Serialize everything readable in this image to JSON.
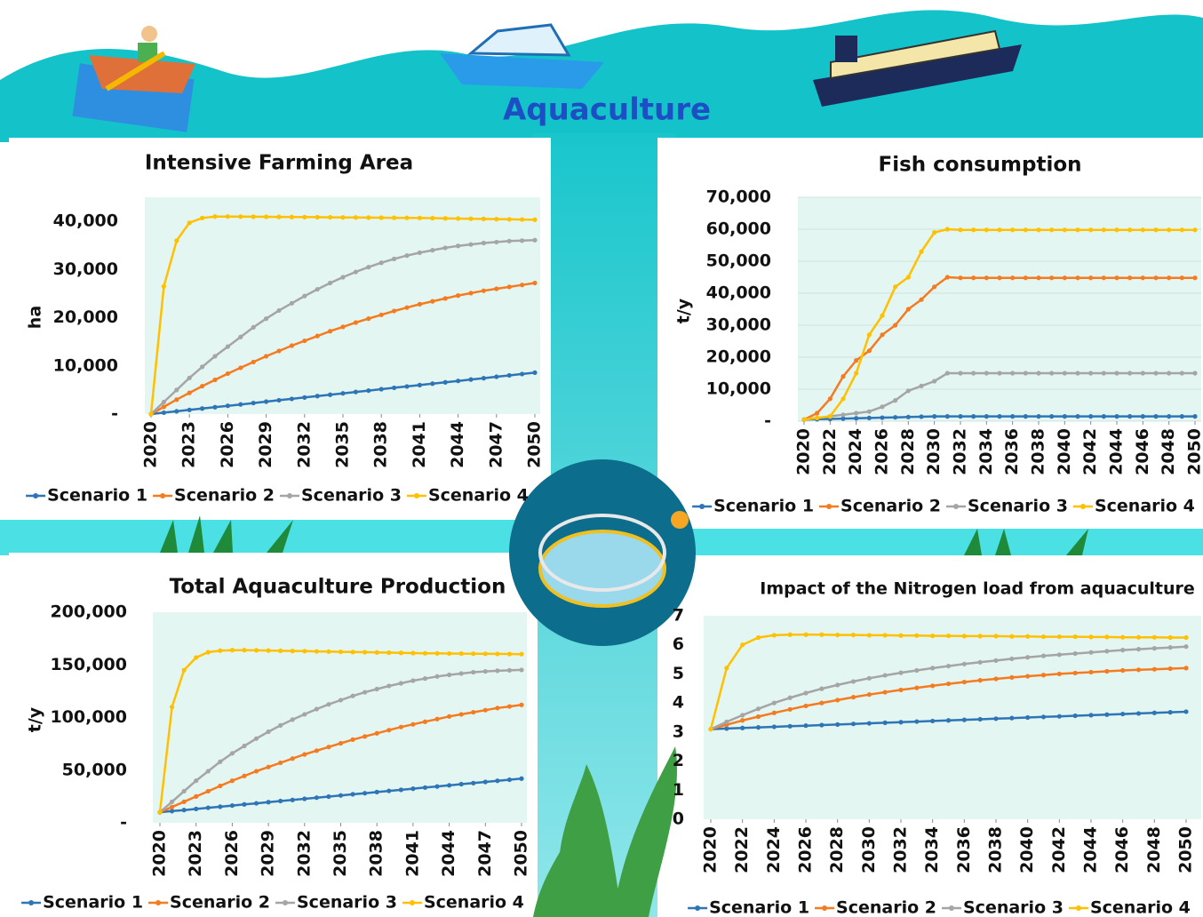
{
  "page_title": "Aquaculture",
  "chart_data": [
    {
      "type": "line",
      "title": "Intensive Farming Area",
      "y_label": "ha",
      "legend": "bottom",
      "grid": false,
      "x": [
        2020,
        2021,
        2022,
        2023,
        2024,
        2025,
        2026,
        2027,
        2028,
        2029,
        2030,
        2031,
        2032,
        2033,
        2034,
        2035,
        2036,
        2037,
        2038,
        2039,
        2040,
        2041,
        2042,
        2043,
        2044,
        2045,
        2046,
        2047,
        2048,
        2049,
        2050
      ],
      "xlim": [
        2020,
        2050
      ],
      "xticks": [
        2020,
        2023,
        2026,
        2029,
        2032,
        2035,
        2038,
        2041,
        2044,
        2047,
        2050
      ],
      "ylim": [
        0,
        45000
      ],
      "yticks": [
        {
          "value": 0,
          "label": "-"
        },
        {
          "value": 10000,
          "label": "10,000"
        },
        {
          "value": 20000,
          "label": "20,000"
        },
        {
          "value": 30000,
          "label": "30,000"
        },
        {
          "value": 40000,
          "label": "40,000"
        }
      ],
      "series": [
        {
          "name": "Scenario 1",
          "color": "#2e75b6",
          "values": [
            0,
            290,
            570,
            860,
            1150,
            1430,
            1720,
            2000,
            2290,
            2580,
            2870,
            3150,
            3440,
            3730,
            4010,
            4300,
            4590,
            4870,
            5160,
            5450,
            5730,
            6020,
            6310,
            6590,
            6880,
            7170,
            7450,
            7740,
            8030,
            8310,
            8600
          ]
        },
        {
          "name": "Scenario 2",
          "color": "#f47b20",
          "values": [
            0,
            1500,
            3000,
            4400,
            5800,
            7100,
            8400,
            9600,
            10800,
            12000,
            13100,
            14200,
            15200,
            16200,
            17200,
            18100,
            19000,
            19800,
            20600,
            21400,
            22100,
            22800,
            23400,
            24000,
            24600,
            25100,
            25600,
            26000,
            26400,
            26800,
            27200
          ]
        },
        {
          "name": "Scenario 3",
          "color": "#a5a5a5",
          "values": [
            0,
            2500,
            5000,
            7500,
            9800,
            12000,
            14000,
            16000,
            18000,
            19800,
            21500,
            23000,
            24500,
            25900,
            27200,
            28400,
            29500,
            30500,
            31400,
            32200,
            32900,
            33500,
            34000,
            34500,
            34900,
            35200,
            35500,
            35700,
            35900,
            36000,
            36100
          ]
        },
        {
          "name": "Scenario 4",
          "color": "#ffc000",
          "values": [
            0,
            26500,
            36000,
            39700,
            40700,
            41000,
            41000,
            40980,
            40960,
            40940,
            40920,
            40900,
            40880,
            40860,
            40840,
            40820,
            40800,
            40780,
            40760,
            40740,
            40720,
            40700,
            40660,
            40620,
            40580,
            40540,
            40500,
            40460,
            40420,
            40380,
            40340
          ]
        }
      ]
    },
    {
      "type": "line",
      "title": "Fish consumption",
      "y_label": "t/y",
      "legend": "bottom",
      "grid": true,
      "x": [
        2020,
        2021,
        2022,
        2023,
        2024,
        2025,
        2026,
        2027,
        2028,
        2029,
        2030,
        2031,
        2032,
        2033,
        2034,
        2035,
        2036,
        2037,
        2038,
        2039,
        2040,
        2041,
        2042,
        2043,
        2044,
        2045,
        2046,
        2047,
        2048,
        2049,
        2050
      ],
      "xlim": [
        2020,
        2050
      ],
      "xticks": [
        2020,
        2022,
        2024,
        2026,
        2028,
        2030,
        2032,
        2034,
        2036,
        2038,
        2040,
        2042,
        2044,
        2046,
        2048,
        2050
      ],
      "ylim": [
        0,
        70000
      ],
      "yticks": [
        {
          "value": 0,
          "label": "-"
        },
        {
          "value": 10000,
          "label": "10,000"
        },
        {
          "value": 20000,
          "label": "20,000"
        },
        {
          "value": 30000,
          "label": "30,000"
        },
        {
          "value": 40000,
          "label": "40,000"
        },
        {
          "value": 50000,
          "label": "50,000"
        },
        {
          "value": 60000,
          "label": "60,000"
        },
        {
          "value": 70000,
          "label": "70,000"
        }
      ],
      "series": [
        {
          "name": "Scenario 1",
          "color": "#2e75b6",
          "values": [
            500,
            600,
            700,
            800,
            900,
            1000,
            1100,
            1200,
            1300,
            1400,
            1500,
            1500,
            1500,
            1500,
            1500,
            1500,
            1500,
            1500,
            1500,
            1500,
            1500,
            1500,
            1500,
            1500,
            1500,
            1500,
            1500,
            1500,
            1500,
            1500,
            1500
          ]
        },
        {
          "name": "Scenario 2",
          "color": "#f47b20",
          "values": [
            500,
            2500,
            7000,
            14000,
            19000,
            22000,
            27000,
            30000,
            35000,
            38000,
            42000,
            45000,
            44800,
            44800,
            44800,
            44800,
            44800,
            44800,
            44800,
            44800,
            44800,
            44800,
            44800,
            44800,
            44800,
            44800,
            44800,
            44800,
            44800,
            44800,
            44800
          ]
        },
        {
          "name": "Scenario 3",
          "color": "#a5a5a5",
          "values": [
            500,
            1000,
            1500,
            2000,
            2500,
            3000,
            4500,
            6500,
            9500,
            11000,
            12500,
            15000,
            15000,
            15000,
            15000,
            15000,
            15000,
            15000,
            15000,
            15000,
            15000,
            15000,
            15000,
            15000,
            15000,
            15000,
            15000,
            15000,
            15000,
            15000,
            15000
          ]
        },
        {
          "name": "Scenario 4",
          "color": "#ffc000",
          "values": [
            500,
            1000,
            1500,
            7000,
            15000,
            27000,
            33000,
            42000,
            45000,
            53000,
            59000,
            60000,
            59800,
            59800,
            59800,
            59800,
            59800,
            59800,
            59800,
            59800,
            59800,
            59800,
            59800,
            59800,
            59800,
            59800,
            59800,
            59800,
            59800,
            59800,
            59800
          ]
        }
      ]
    },
    {
      "type": "line",
      "title": "Total Aquaculture Production",
      "y_label": "t/y",
      "legend": "bottom",
      "grid": false,
      "x": [
        2020,
        2021,
        2022,
        2023,
        2024,
        2025,
        2026,
        2027,
        2028,
        2029,
        2030,
        2031,
        2032,
        2033,
        2034,
        2035,
        2036,
        2037,
        2038,
        2039,
        2040,
        2041,
        2042,
        2043,
        2044,
        2045,
        2046,
        2047,
        2048,
        2049,
        2050
      ],
      "xlim": [
        2020,
        2050
      ],
      "xticks": [
        2020,
        2023,
        2026,
        2029,
        2032,
        2035,
        2038,
        2041,
        2044,
        2047,
        2050
      ],
      "ylim": [
        0,
        200000
      ],
      "yticks": [
        {
          "value": 0,
          "label": "-"
        },
        {
          "value": 50000,
          "label": "50,000"
        },
        {
          "value": 100000,
          "label": "100,000"
        },
        {
          "value": 150000,
          "label": "150,000"
        },
        {
          "value": 200000,
          "label": "200,000"
        }
      ],
      "series": [
        {
          "name": "Scenario 1",
          "color": "#2e75b6",
          "values": [
            10000,
            11100,
            12100,
            13200,
            14300,
            15300,
            16400,
            17500,
            18500,
            19600,
            20700,
            21700,
            22800,
            23900,
            24900,
            26000,
            27100,
            28100,
            29200,
            30300,
            31300,
            32400,
            33500,
            34500,
            35600,
            36700,
            37700,
            38800,
            39900,
            40900,
            42000
          ]
        },
        {
          "name": "Scenario 2",
          "color": "#f47b20",
          "values": [
            10000,
            15000,
            20000,
            25000,
            30000,
            35000,
            40000,
            44500,
            49000,
            53000,
            57000,
            61000,
            65000,
            68500,
            72000,
            75500,
            79000,
            82000,
            85000,
            88000,
            91000,
            93500,
            96000,
            98500,
            101000,
            103000,
            105000,
            107000,
            109000,
            110500,
            112000
          ]
        },
        {
          "name": "Scenario 3",
          "color": "#a5a5a5",
          "values": [
            10000,
            20000,
            30000,
            40000,
            49000,
            58000,
            66000,
            73000,
            80000,
            86500,
            92500,
            98000,
            103000,
            108000,
            112500,
            116500,
            120500,
            124000,
            127000,
            130000,
            132500,
            135000,
            137000,
            139000,
            140500,
            141800,
            143000,
            143800,
            144400,
            144800,
            145200
          ]
        },
        {
          "name": "Scenario 4",
          "color": "#ffc000",
          "values": [
            10000,
            110000,
            145000,
            157000,
            162000,
            163500,
            164000,
            164000,
            163800,
            163600,
            163400,
            163200,
            163000,
            162800,
            162600,
            162400,
            162200,
            162000,
            161800,
            161600,
            161400,
            161200,
            161000,
            160900,
            160800,
            160700,
            160600,
            160500,
            160400,
            160300,
            160200
          ]
        }
      ]
    },
    {
      "type": "line",
      "title": "Impact of the Nitrogen load from aquaculture",
      "legend": "bottom",
      "grid": false,
      "x": [
        2020,
        2021,
        2022,
        2023,
        2024,
        2025,
        2026,
        2027,
        2028,
        2029,
        2030,
        2031,
        2032,
        2033,
        2034,
        2035,
        2036,
        2037,
        2038,
        2039,
        2040,
        2041,
        2042,
        2043,
        2044,
        2045,
        2046,
        2047,
        2048,
        2049,
        2050
      ],
      "xlim": [
        2020,
        2050
      ],
      "xticks": [
        2020,
        2022,
        2024,
        2026,
        2028,
        2030,
        2032,
        2034,
        2036,
        2038,
        2040,
        2042,
        2044,
        2046,
        2048,
        2050
      ],
      "ylim": [
        0,
        7
      ],
      "yticks": [
        0,
        1,
        2,
        3,
        4,
        5,
        6,
        7
      ],
      "series": [
        {
          "name": "Scenario 1",
          "color": "#2e75b6",
          "values": [
            3.1,
            3.12,
            3.14,
            3.16,
            3.18,
            3.2,
            3.22,
            3.24,
            3.26,
            3.28,
            3.3,
            3.32,
            3.34,
            3.36,
            3.38,
            3.4,
            3.42,
            3.44,
            3.46,
            3.48,
            3.5,
            3.52,
            3.54,
            3.56,
            3.58,
            3.6,
            3.62,
            3.64,
            3.66,
            3.68,
            3.7
          ]
        },
        {
          "name": "Scenario 2",
          "color": "#f47b20",
          "values": [
            3.1,
            3.25,
            3.4,
            3.53,
            3.66,
            3.78,
            3.9,
            4.0,
            4.1,
            4.2,
            4.29,
            4.37,
            4.45,
            4.52,
            4.59,
            4.66,
            4.72,
            4.78,
            4.83,
            4.88,
            4.92,
            4.96,
            5.0,
            5.03,
            5.06,
            5.09,
            5.12,
            5.14,
            5.16,
            5.18,
            5.2
          ]
        },
        {
          "name": "Scenario 3",
          "color": "#a5a5a5",
          "values": [
            3.1,
            3.35,
            3.58,
            3.8,
            4.0,
            4.18,
            4.34,
            4.49,
            4.62,
            4.74,
            4.85,
            4.95,
            5.04,
            5.12,
            5.2,
            5.27,
            5.34,
            5.4,
            5.46,
            5.52,
            5.57,
            5.62,
            5.66,
            5.7,
            5.74,
            5.78,
            5.82,
            5.85,
            5.88,
            5.91,
            5.94
          ]
        },
        {
          "name": "Scenario 4",
          "color": "#ffc000",
          "values": [
            3.1,
            5.2,
            6.0,
            6.25,
            6.33,
            6.35,
            6.35,
            6.35,
            6.34,
            6.34,
            6.33,
            6.33,
            6.32,
            6.32,
            6.31,
            6.31,
            6.3,
            6.3,
            6.3,
            6.29,
            6.29,
            6.28,
            6.28,
            6.28,
            6.27,
            6.27,
            6.26,
            6.26,
            6.26,
            6.25,
            6.25
          ]
        }
      ]
    }
  ]
}
